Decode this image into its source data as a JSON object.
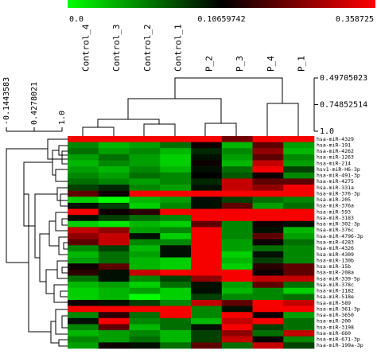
{
  "chart_data": {
    "type": "heatmap",
    "color_scale": {
      "colors": [
        "#00ff00",
        "#000000",
        "#ff0000"
      ],
      "ticks": [
        {
          "value": 0,
          "label": "0.0"
        },
        0.10659742,
        0.358725
      ]
    },
    "columns": [
      "Control_4",
      "Control_3",
      "Control_2",
      "Control_1",
      "P_2",
      "P_3",
      "P_4",
      "P_1"
    ],
    "rows": [
      "hsa-miR-4329",
      "hsa-miR-191",
      "hsa-miR-4262",
      "hsa-miR-1263",
      "hsa-miR-214",
      "hsv1-miR-H6-3p",
      "hsa-miR-491-3p",
      "hsa-miR-4275",
      "hsa-miR-331a",
      "hsa-miR-376-3p",
      "hsa-miR-205",
      "hsa-miR-376a",
      "hsa-miR-593",
      "hsa-miR-3183",
      "hsa-miR-302-3p",
      "hsa-miR-376c",
      "hsa-miR-4796-3p",
      "hsa-miR-4283",
      "hsa-miR-4326",
      "hsa-miR-4309",
      "hsa-miR-130b",
      "hsa-miR-15b",
      "hsa-miR-208a",
      "hsa-miR-339-5p",
      "hsa-miR-378c",
      "hsa-miR-1182",
      "hsa-miR-518e",
      "hsa-miR-589",
      "hsa-miR-361-3p",
      "hsa-miR-3650",
      "hsa-miR-200",
      "hsa-miR-3198",
      "hsa-miR-660",
      "hsa-miR-671-3p",
      "hsa-miR-199a-3p"
    ],
    "values": [
      [
        0.35,
        0.35,
        0.35,
        0.35,
        0.35,
        0.22,
        0.35,
        0.35
      ],
      [
        0.05,
        0.03,
        0.04,
        0.06,
        0.12,
        0.03,
        0.2,
        0.04
      ],
      [
        0.06,
        0.04,
        0.05,
        0.03,
        0.09,
        0.05,
        0.25,
        0.03
      ],
      [
        0.04,
        0.06,
        0.04,
        0.02,
        0.1,
        0.04,
        0.2,
        0.05
      ],
      [
        0.03,
        0.05,
        0.04,
        0.02,
        0.12,
        0.03,
        0.3,
        0.04
      ],
      [
        0.04,
        0.03,
        0.05,
        0.03,
        0.1,
        0.06,
        0.35,
        0.08
      ],
      [
        0.05,
        0.04,
        0.06,
        0.05,
        0.11,
        0.07,
        0.12,
        0.05
      ],
      [
        0.06,
        0.05,
        0.04,
        0.05,
        0.09,
        0.3,
        0.2,
        0.2
      ],
      [
        0.08,
        0.09,
        0.05,
        0.04,
        0.1,
        0.3,
        0.25,
        0.35
      ],
      [
        0.2,
        0.12,
        0.35,
        0.35,
        0.35,
        0.35,
        0.35,
        0.35
      ],
      [
        0.02,
        0.0,
        0.03,
        0.04,
        0.1,
        0.08,
        0.06,
        0.05
      ],
      [
        0.1,
        0.08,
        0.02,
        0.05,
        0.1,
        0.2,
        0.04,
        0.06
      ],
      [
        0.35,
        0.12,
        0.15,
        0.35,
        0.35,
        0.35,
        0.35,
        0.35
      ],
      [
        0.1,
        0.08,
        0.06,
        0.05,
        0.35,
        0.35,
        0.35,
        0.35
      ],
      [
        0.02,
        0.01,
        0.03,
        0.02,
        0.2,
        0.05,
        0.12,
        0.1
      ],
      [
        0.3,
        0.25,
        0.04,
        0.05,
        0.35,
        0.05,
        0.1,
        0.03
      ],
      [
        0.25,
        0.3,
        0.1,
        0.02,
        0.35,
        0.05,
        0.2,
        0.04
      ],
      [
        0.2,
        0.3,
        0.05,
        0.05,
        0.35,
        0.04,
        0.12,
        0.06
      ],
      [
        0.05,
        0.08,
        0.03,
        0.1,
        0.35,
        0.04,
        0.06,
        0.05
      ],
      [
        0.03,
        0.06,
        0.04,
        0.1,
        0.35,
        0.02,
        0.1,
        0.05
      ],
      [
        0.04,
        0.06,
        0.03,
        0.02,
        0.35,
        0.03,
        0.08,
        0.05
      ],
      [
        0.12,
        0.2,
        0.03,
        0.02,
        0.35,
        0.02,
        0.15,
        0.2
      ],
      [
        0.15,
        0.1,
        0.3,
        0.35,
        0.35,
        0.35,
        0.12,
        0.2
      ],
      [
        0.06,
        0.1,
        0.05,
        0.08,
        0.25,
        0.35,
        0.3,
        0.3
      ],
      [
        0.03,
        0.04,
        0.02,
        0.06,
        0.1,
        0.04,
        0.2,
        0.06
      ],
      [
        0.02,
        0.03,
        0.04,
        0.02,
        0.1,
        0.03,
        0.05,
        0.02
      ],
      [
        0.02,
        0.03,
        0.0,
        0.02,
        0.08,
        0.05,
        0.05,
        0.06
      ],
      [
        0.12,
        0.1,
        0.08,
        0.05,
        0.3,
        0.2,
        0.35,
        0.3
      ],
      [
        0.35,
        0.35,
        0.35,
        0.35,
        0.05,
        0.1,
        0.35,
        0.35
      ],
      [
        0.05,
        0.15,
        0.06,
        0.35,
        0.05,
        0.35,
        0.12,
        0.04
      ],
      [
        0.1,
        0.35,
        0.05,
        0.06,
        0.03,
        0.3,
        0.35,
        0.06
      ],
      [
        0.05,
        0.2,
        0.03,
        0.06,
        0.1,
        0.35,
        0.08,
        0.06
      ],
      [
        0.03,
        0.04,
        0.05,
        0.03,
        0.08,
        0.25,
        0.06,
        0.3
      ],
      [
        0.05,
        0.04,
        0.06,
        0.03,
        0.08,
        0.3,
        0.12,
        0.05
      ],
      [
        0.04,
        0.12,
        0.1,
        0.06,
        0.2,
        0.06,
        0.3,
        0.08
      ]
    ],
    "column_dendrogram_ticks": [
      0.49705023,
      0.74852514,
      {
        "value": 1,
        "label": "1.0"
      }
    ],
    "row_dendrogram_ticks": [
      -0.1443583,
      0.4278021,
      {
        "value": 1,
        "label": "1.0"
      }
    ]
  }
}
